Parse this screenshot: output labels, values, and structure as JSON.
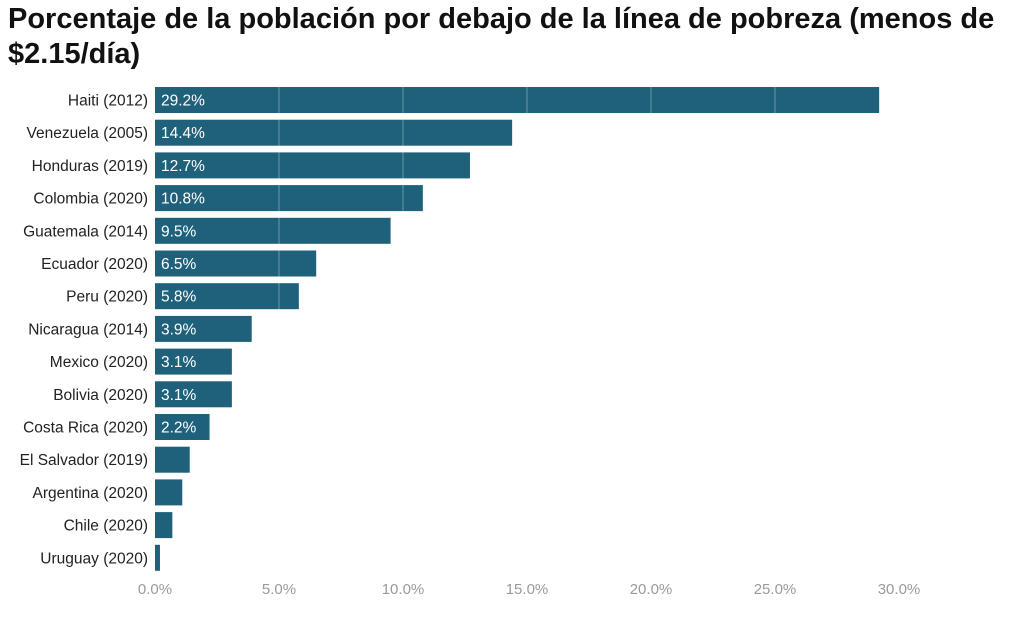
{
  "chart_data": {
    "type": "bar",
    "orientation": "horizontal",
    "title": "Porcentaje de la población por debajo de la línea de pobreza (menos de $2.15/día)",
    "xlabel": "",
    "ylabel": "",
    "xlim": [
      0,
      30
    ],
    "x_ticks": [
      "0.0%",
      "5.0%",
      "10.0%",
      "15.0%",
      "20.0%",
      "25.0%",
      "30.0%"
    ],
    "grid": true,
    "bar_color": "#1f617a",
    "categories": [
      "Haiti (2012)",
      "Venezuela (2005)",
      "Honduras (2019)",
      "Colombia (2020)",
      "Guatemala (2014)",
      "Ecuador (2020)",
      "Peru (2020)",
      "Nicaragua (2014)",
      "Mexico (2020)",
      "Bolivia (2020)",
      "Costa Rica (2020)",
      "El Salvador (2019)",
      "Argentina (2020)",
      "Chile (2020)",
      "Uruguay (2020)"
    ],
    "values": [
      29.2,
      14.4,
      12.7,
      10.8,
      9.5,
      6.5,
      5.8,
      3.9,
      3.1,
      3.1,
      2.2,
      1.4,
      1.1,
      0.7,
      0.2
    ],
    "data_labels": [
      "29.2%",
      "14.4%",
      "12.7%",
      "10.8%",
      "9.5%",
      "6.5%",
      "5.8%",
      "3.9%",
      "3.1%",
      "3.1%",
      "2.2%",
      "",
      "",
      "",
      ""
    ]
  }
}
